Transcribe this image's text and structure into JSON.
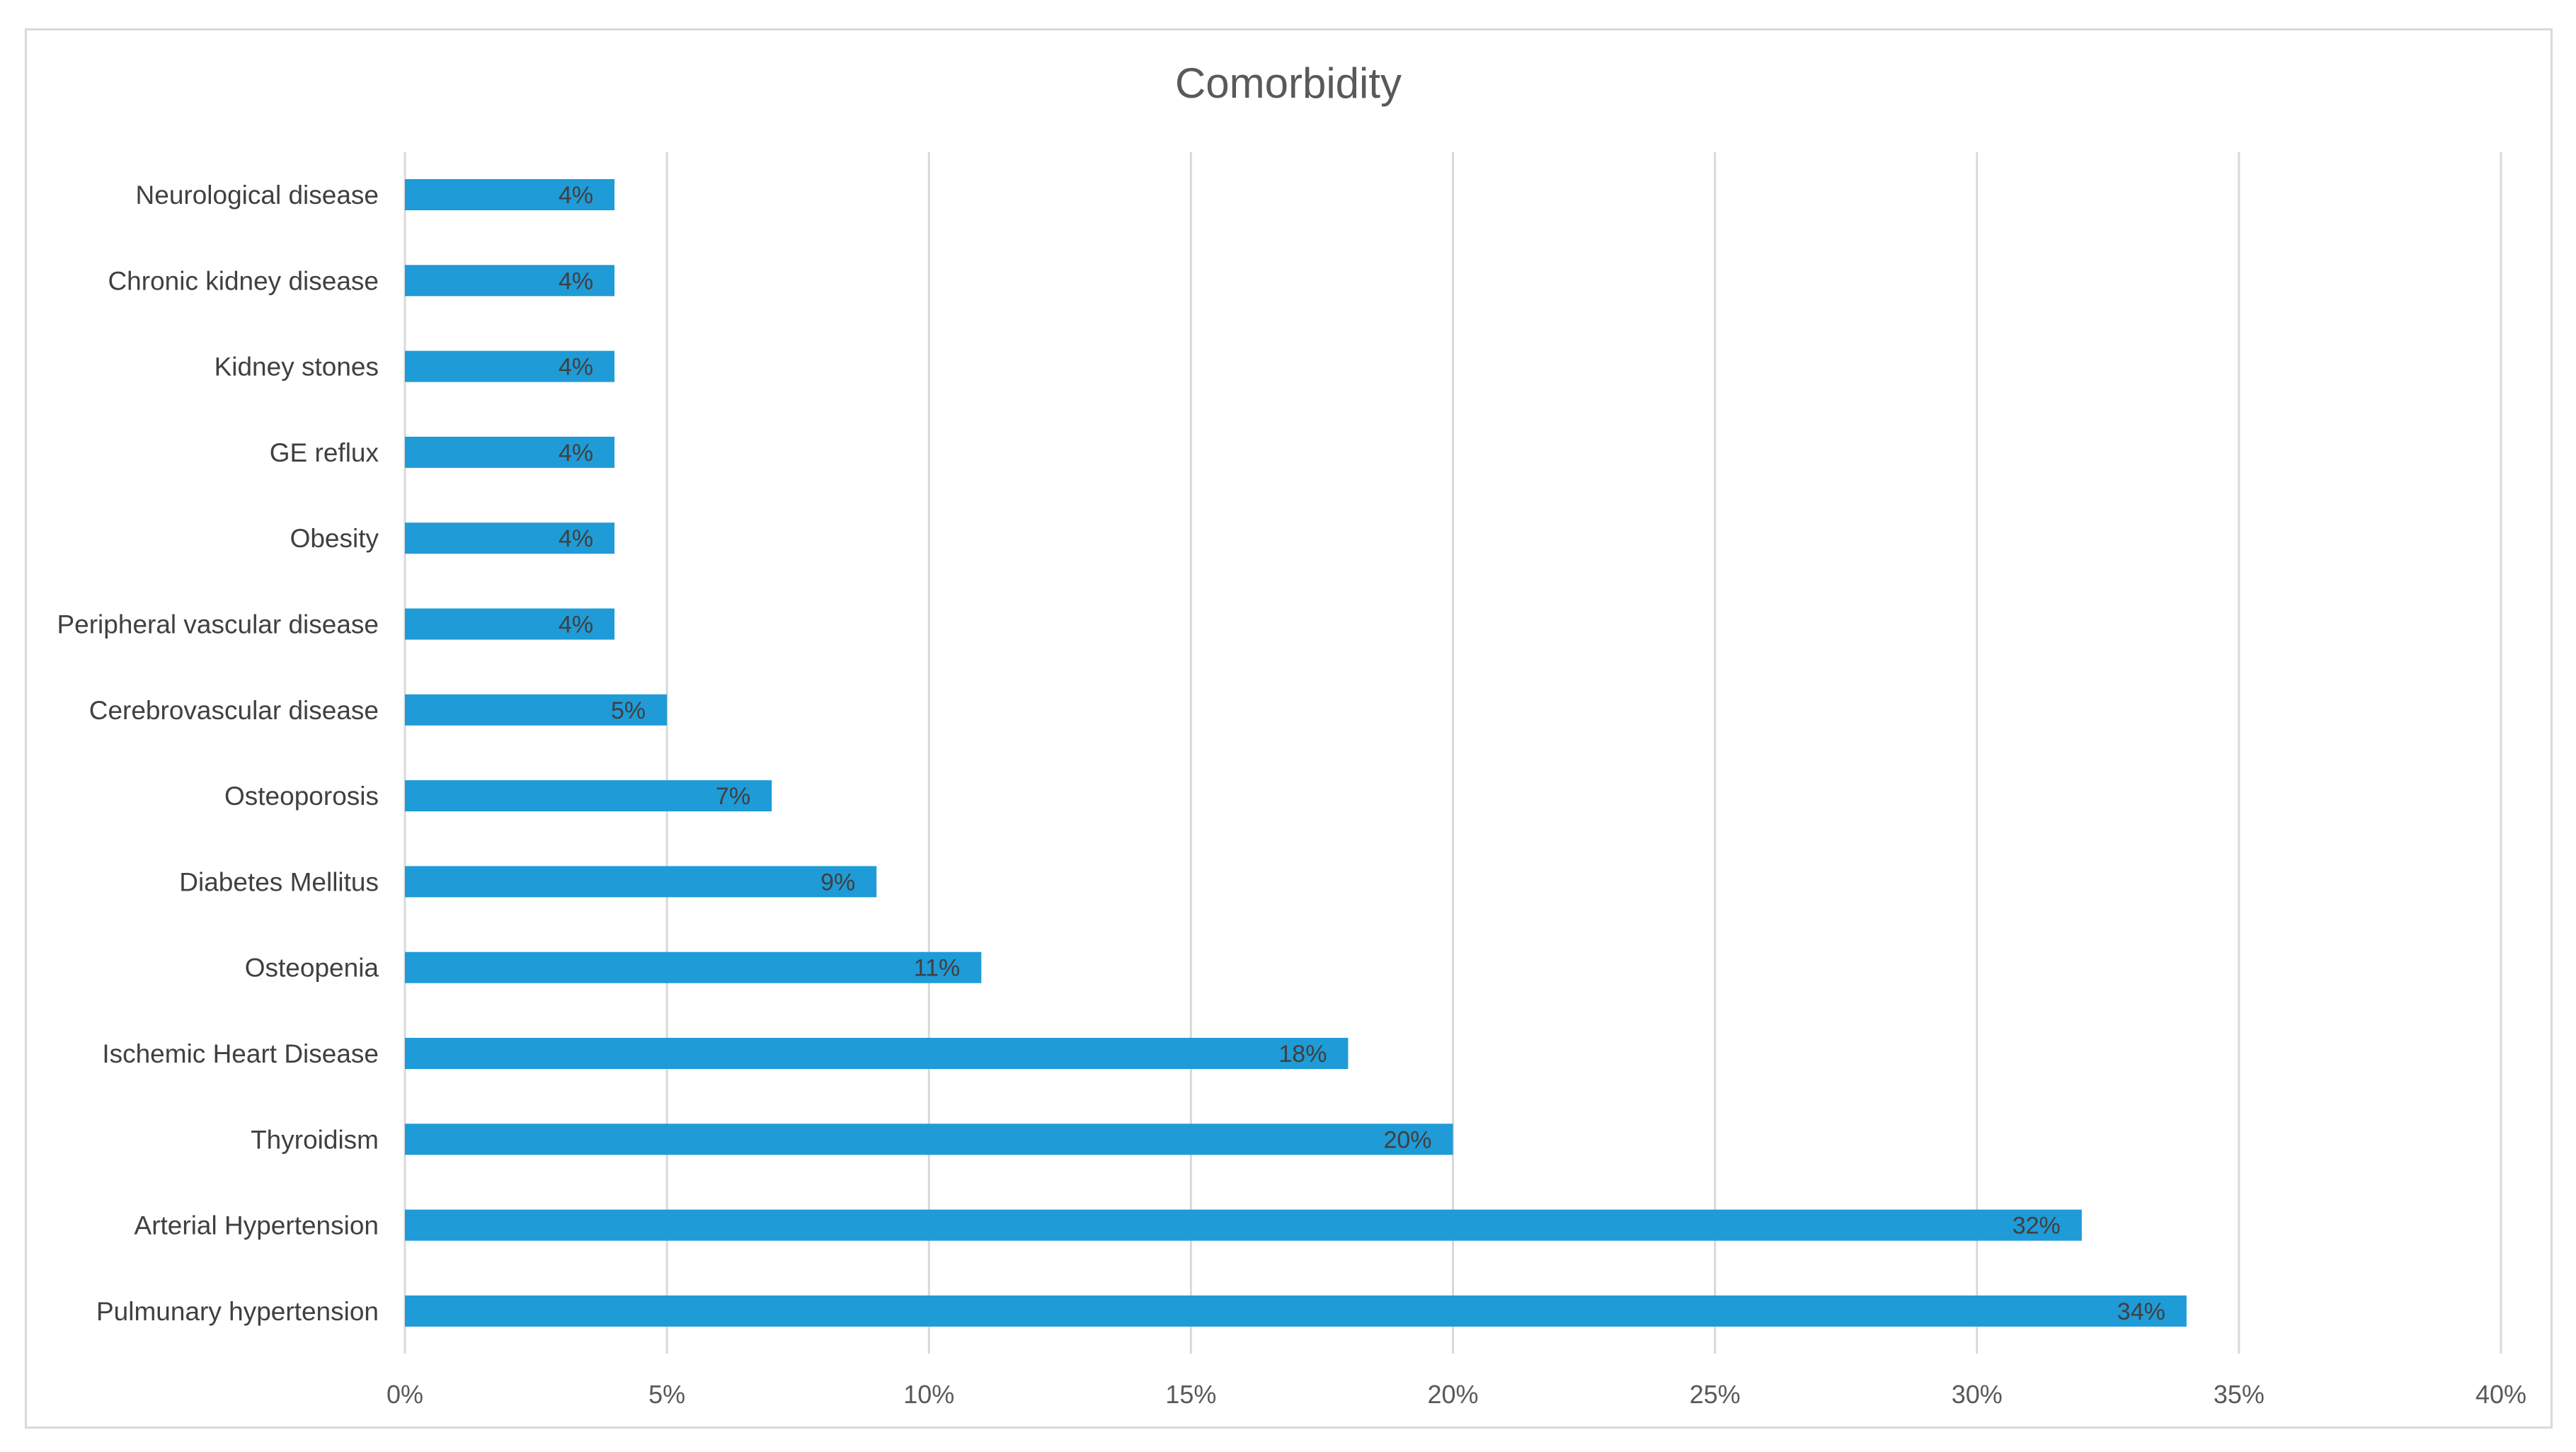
{
  "chart_data": {
    "type": "bar",
    "orientation": "horizontal",
    "title": "Comorbidity",
    "xlabel": "",
    "ylabel": "",
    "categories": [
      "Neurological disease",
      "Chronic kidney disease",
      "Kidney stones",
      "GE reflux",
      "Obesity",
      "Peripheral vascular disease",
      "Cerebrovascular disease",
      "Osteoporosis",
      "Diabetes Mellitus",
      "Osteopenia",
      "Ischemic Heart Disease",
      "Thyroidism",
      "Arterial Hypertension",
      "Pulmunary hypertension"
    ],
    "values": [
      4,
      4,
      4,
      4,
      4,
      4,
      5,
      7,
      9,
      11,
      18,
      20,
      32,
      34
    ],
    "data_labels": [
      "4%",
      "4%",
      "4%",
      "4%",
      "4%",
      "4%",
      "5%",
      "7%",
      "9%",
      "11%",
      "18%",
      "20%",
      "32%",
      "34%"
    ],
    "xlim": [
      0,
      40
    ],
    "x_ticks": [
      0,
      5,
      10,
      15,
      20,
      25,
      30,
      35,
      40
    ],
    "x_tick_labels": [
      "0%",
      "5%",
      "10%",
      "15%",
      "20%",
      "25%",
      "30%",
      "35%",
      "40%"
    ],
    "grid": true,
    "legend": "none",
    "bar_color": "#1f9bd7"
  }
}
